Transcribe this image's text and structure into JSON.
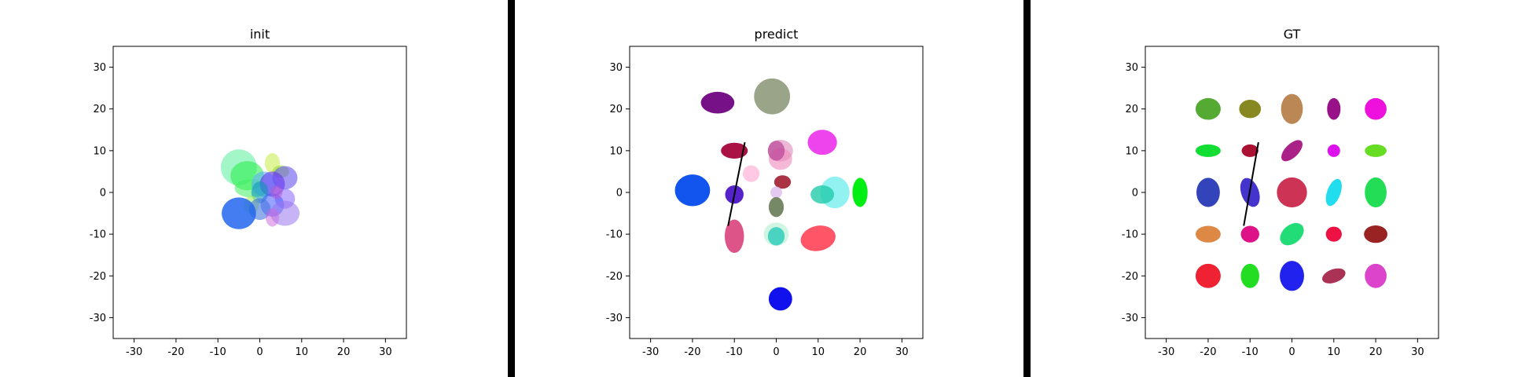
{
  "chart_data": [
    {
      "type": "scatter",
      "title": "init",
      "xlabel": "",
      "ylabel": "",
      "xlim": [
        -35,
        35
      ],
      "ylim": [
        -35,
        35
      ],
      "xticks": [
        -30,
        -20,
        -10,
        0,
        10,
        20,
        30
      ],
      "yticks": [
        -30,
        -20,
        -10,
        0,
        10,
        20,
        30
      ],
      "grid": false,
      "marks": [
        {
          "x": -5,
          "y": 6,
          "rx": 4.3,
          "ry": 4.3,
          "rot": 0,
          "color": "#55ee99",
          "alpha": 0.55
        },
        {
          "x": -3,
          "y": 4,
          "rx": 4.0,
          "ry": 3.5,
          "rot": 0,
          "color": "#22ee44",
          "alpha": 0.55
        },
        {
          "x": 3,
          "y": 7,
          "rx": 1.8,
          "ry": 2.4,
          "rot": 0,
          "color": "#ccee55",
          "alpha": 0.6
        },
        {
          "x": 5,
          "y": 5,
          "rx": 2.0,
          "ry": 1.5,
          "rot": 0,
          "color": "#99dd33",
          "alpha": 0.6
        },
        {
          "x": 6,
          "y": 3.5,
          "rx": 3.0,
          "ry": 2.8,
          "rot": 0,
          "color": "#6655ee",
          "alpha": 0.6
        },
        {
          "x": -2,
          "y": 1,
          "rx": 4.0,
          "ry": 2.2,
          "rot": 0,
          "color": "#44ee66",
          "alpha": 0.55
        },
        {
          "x": 1,
          "y": 2,
          "rx": 3.0,
          "ry": 3.0,
          "rot": 0,
          "color": "#55aaff",
          "alpha": 0.55
        },
        {
          "x": 3,
          "y": 2,
          "rx": 3.0,
          "ry": 3.0,
          "rot": 0,
          "color": "#6633ee",
          "alpha": 0.6
        },
        {
          "x": 0,
          "y": 0,
          "rx": 2.0,
          "ry": 2.6,
          "rot": 0,
          "color": "#1199bb",
          "alpha": 0.6
        },
        {
          "x": 6,
          "y": -1.5,
          "rx": 2.4,
          "ry": 2.4,
          "rot": 0,
          "color": "#8866ff",
          "alpha": 0.55
        },
        {
          "x": 3,
          "y": -3,
          "rx": 2.8,
          "ry": 2.8,
          "rot": 0,
          "color": "#4455ff",
          "alpha": 0.55
        },
        {
          "x": -2,
          "y": -3,
          "rx": 1.8,
          "ry": 2.2,
          "rot": 0,
          "color": "#aaee66",
          "alpha": 0.6
        },
        {
          "x": 0,
          "y": -4,
          "rx": 2.6,
          "ry": 2.6,
          "rot": 0,
          "color": "#4477dd",
          "alpha": 0.6
        },
        {
          "x": -5,
          "y": -5,
          "rx": 4.1,
          "ry": 3.8,
          "rot": 0,
          "color": "#2266ee",
          "alpha": 0.85
        },
        {
          "x": 6,
          "y": -5,
          "rx": 3.5,
          "ry": 3.0,
          "rot": 0,
          "color": "#9977ee",
          "alpha": 0.55
        },
        {
          "x": 3,
          "y": -6,
          "rx": 1.6,
          "ry": 2.2,
          "rot": 0,
          "color": "#cc66dd",
          "alpha": 0.5
        },
        {
          "x": 4,
          "y": 0,
          "rx": 1.4,
          "ry": 1.6,
          "rot": 0,
          "color": "#bb55cc",
          "alpha": 0.5
        }
      ],
      "segment": null
    },
    {
      "type": "scatter",
      "title": "predict",
      "xlabel": "",
      "ylabel": "",
      "xlim": [
        -35,
        35
      ],
      "ylim": [
        -35,
        35
      ],
      "xticks": [
        -30,
        -20,
        -10,
        0,
        10,
        20,
        30
      ],
      "yticks": [
        -30,
        -20,
        -10,
        0,
        10,
        20,
        30
      ],
      "grid": false,
      "marks": [
        {
          "x": -14,
          "y": 21.5,
          "rx": 4.0,
          "ry": 2.6,
          "rot": 0,
          "color": "#771188",
          "alpha": 1
        },
        {
          "x": -1,
          "y": 23,
          "rx": 4.3,
          "ry": 4.3,
          "rot": 0,
          "color": "#99a488",
          "alpha": 1
        },
        {
          "x": 11,
          "y": 12,
          "rx": 3.5,
          "ry": 3.0,
          "rot": 0,
          "color": "#ee44ee",
          "alpha": 1
        },
        {
          "x": -10,
          "y": 10,
          "rx": 3.2,
          "ry": 1.9,
          "rot": 0,
          "color": "#aa1144",
          "alpha": 1
        },
        {
          "x": 1,
          "y": 10,
          "rx": 3.0,
          "ry": 2.6,
          "rot": 0,
          "color": "#dd88bb",
          "alpha": 0.6
        },
        {
          "x": 1,
          "y": 8,
          "rx": 2.8,
          "ry": 2.6,
          "rot": 0,
          "color": "#ee88bb",
          "alpha": 0.6
        },
        {
          "x": 0,
          "y": 10,
          "rx": 2.0,
          "ry": 2.4,
          "rot": 0,
          "color": "#bb4499",
          "alpha": 0.7
        },
        {
          "x": -20,
          "y": 0.5,
          "rx": 4.2,
          "ry": 3.8,
          "rot": 0,
          "color": "#1155ee",
          "alpha": 1
        },
        {
          "x": -6,
          "y": 4.5,
          "rx": 2.0,
          "ry": 2.0,
          "rot": 0,
          "color": "#ffbbdd",
          "alpha": 0.8
        },
        {
          "x": 1.5,
          "y": 2.5,
          "rx": 2.0,
          "ry": 1.6,
          "rot": 0,
          "color": "#aa3344",
          "alpha": 1
        },
        {
          "x": 14,
          "y": 0,
          "rx": 3.5,
          "ry": 3.8,
          "rot": 0,
          "color": "#77eeee",
          "alpha": 0.8
        },
        {
          "x": 11,
          "y": -0.5,
          "rx": 2.8,
          "ry": 2.2,
          "rot": 0,
          "color": "#22ccaa",
          "alpha": 0.8
        },
        {
          "x": 20,
          "y": 0,
          "rx": 1.8,
          "ry": 3.5,
          "rot": 0,
          "color": "#00ee11",
          "alpha": 1
        },
        {
          "x": -10,
          "y": -0.5,
          "rx": 2.2,
          "ry": 2.2,
          "rot": 0,
          "color": "#5522cc",
          "alpha": 1
        },
        {
          "x": 0,
          "y": 0,
          "rx": 1.4,
          "ry": 1.4,
          "rot": 0,
          "color": "#ddbbee",
          "alpha": 0.8
        },
        {
          "x": 0,
          "y": -3.5,
          "rx": 1.8,
          "ry": 2.4,
          "rot": 0,
          "color": "#778866",
          "alpha": 1
        },
        {
          "x": -10,
          "y": -10.5,
          "rx": 2.3,
          "ry": 4.0,
          "rot": 0,
          "color": "#dd5588",
          "alpha": 1
        },
        {
          "x": 0,
          "y": -10,
          "rx": 3.0,
          "ry": 2.8,
          "rot": 0,
          "color": "#aaeecc",
          "alpha": 0.55
        },
        {
          "x": 0,
          "y": -10.5,
          "rx": 2.0,
          "ry": 2.2,
          "rot": 0,
          "color": "#33ccbb",
          "alpha": 0.85
        },
        {
          "x": 10,
          "y": -11,
          "rx": 4.2,
          "ry": 3.0,
          "rot": -12,
          "color": "#ff5566",
          "alpha": 1
        },
        {
          "x": 1,
          "y": -25.5,
          "rx": 2.8,
          "ry": 2.8,
          "rot": 0,
          "color": "#1111ee",
          "alpha": 1
        }
      ],
      "segment": {
        "x1": -7.5,
        "y1": 12,
        "x2": -11.5,
        "y2": -8
      }
    },
    {
      "type": "scatter",
      "title": "GT",
      "xlabel": "",
      "ylabel": "",
      "xlim": [
        -35,
        35
      ],
      "ylim": [
        -35,
        35
      ],
      "xticks": [
        -30,
        -20,
        -10,
        0,
        10,
        20,
        30
      ],
      "yticks": [
        -30,
        -20,
        -10,
        0,
        10,
        20,
        30
      ],
      "grid": false,
      "marks": [
        {
          "x": -20,
          "y": 20,
          "rx": 3.0,
          "ry": 2.6,
          "rot": 0,
          "color": "#55aa33",
          "alpha": 1
        },
        {
          "x": -10,
          "y": 20,
          "rx": 2.6,
          "ry": 2.2,
          "rot": 0,
          "color": "#888822",
          "alpha": 1
        },
        {
          "x": 0,
          "y": 20,
          "rx": 2.6,
          "ry": 3.6,
          "rot": 0,
          "color": "#bb8855",
          "alpha": 1
        },
        {
          "x": 10,
          "y": 20,
          "rx": 1.6,
          "ry": 2.6,
          "rot": 0,
          "color": "#991188",
          "alpha": 1
        },
        {
          "x": 20,
          "y": 20,
          "rx": 2.6,
          "ry": 2.6,
          "rot": 0,
          "color": "#ee11dd",
          "alpha": 1
        },
        {
          "x": -20,
          "y": 10,
          "rx": 3.0,
          "ry": 1.5,
          "rot": 0,
          "color": "#11dd33",
          "alpha": 1
        },
        {
          "x": -10,
          "y": 10,
          "rx": 2.0,
          "ry": 1.5,
          "rot": 0,
          "color": "#aa1133",
          "alpha": 1
        },
        {
          "x": 0,
          "y": 10,
          "rx": 3.2,
          "ry": 1.6,
          "rot": -45,
          "color": "#aa2288",
          "alpha": 1
        },
        {
          "x": 10,
          "y": 10,
          "rx": 1.5,
          "ry": 1.5,
          "rot": 0,
          "color": "#dd11ee",
          "alpha": 1
        },
        {
          "x": 20,
          "y": 10,
          "rx": 2.6,
          "ry": 1.5,
          "rot": 0,
          "color": "#66dd22",
          "alpha": 1
        },
        {
          "x": -20,
          "y": 0,
          "rx": 2.8,
          "ry": 3.5,
          "rot": 0,
          "color": "#3344bb",
          "alpha": 1
        },
        {
          "x": -10,
          "y": 0,
          "rx": 2.1,
          "ry": 3.6,
          "rot": -20,
          "color": "#4433cc",
          "alpha": 1
        },
        {
          "x": 0,
          "y": 0,
          "rx": 3.6,
          "ry": 3.6,
          "rot": 0,
          "color": "#cc3355",
          "alpha": 1
        },
        {
          "x": 10,
          "y": 0,
          "rx": 1.6,
          "ry": 3.4,
          "rot": 20,
          "color": "#22ddee",
          "alpha": 1
        },
        {
          "x": 20,
          "y": 0,
          "rx": 2.6,
          "ry": 3.6,
          "rot": 0,
          "color": "#22dd55",
          "alpha": 1
        },
        {
          "x": -20,
          "y": -10,
          "rx": 3.0,
          "ry": 2.0,
          "rot": 0,
          "color": "#dd8844",
          "alpha": 1
        },
        {
          "x": -10,
          "y": -10,
          "rx": 2.2,
          "ry": 2.0,
          "rot": 0,
          "color": "#dd1188",
          "alpha": 1
        },
        {
          "x": 0,
          "y": -10,
          "rx": 3.2,
          "ry": 2.2,
          "rot": -40,
          "color": "#22dd77",
          "alpha": 1
        },
        {
          "x": 10,
          "y": -10,
          "rx": 1.9,
          "ry": 1.8,
          "rot": 0,
          "color": "#ee1144",
          "alpha": 1
        },
        {
          "x": 20,
          "y": -10,
          "rx": 2.8,
          "ry": 2.1,
          "rot": 0,
          "color": "#992222",
          "alpha": 1
        },
        {
          "x": -20,
          "y": -20,
          "rx": 3.0,
          "ry": 2.9,
          "rot": 0,
          "color": "#ee2233",
          "alpha": 1
        },
        {
          "x": -10,
          "y": -20,
          "rx": 2.2,
          "ry": 2.9,
          "rot": 0,
          "color": "#22dd22",
          "alpha": 1
        },
        {
          "x": 0,
          "y": -20,
          "rx": 2.9,
          "ry": 3.6,
          "rot": 0,
          "color": "#2222ee",
          "alpha": 1
        },
        {
          "x": 10,
          "y": -20,
          "rx": 2.9,
          "ry": 1.6,
          "rot": -20,
          "color": "#aa3355",
          "alpha": 1
        },
        {
          "x": 20,
          "y": -20,
          "rx": 2.6,
          "ry": 2.9,
          "rot": 0,
          "color": "#dd44cc",
          "alpha": 1
        }
      ],
      "segment": {
        "x1": -8,
        "y1": 12,
        "x2": -11.5,
        "y2": -8
      }
    }
  ]
}
